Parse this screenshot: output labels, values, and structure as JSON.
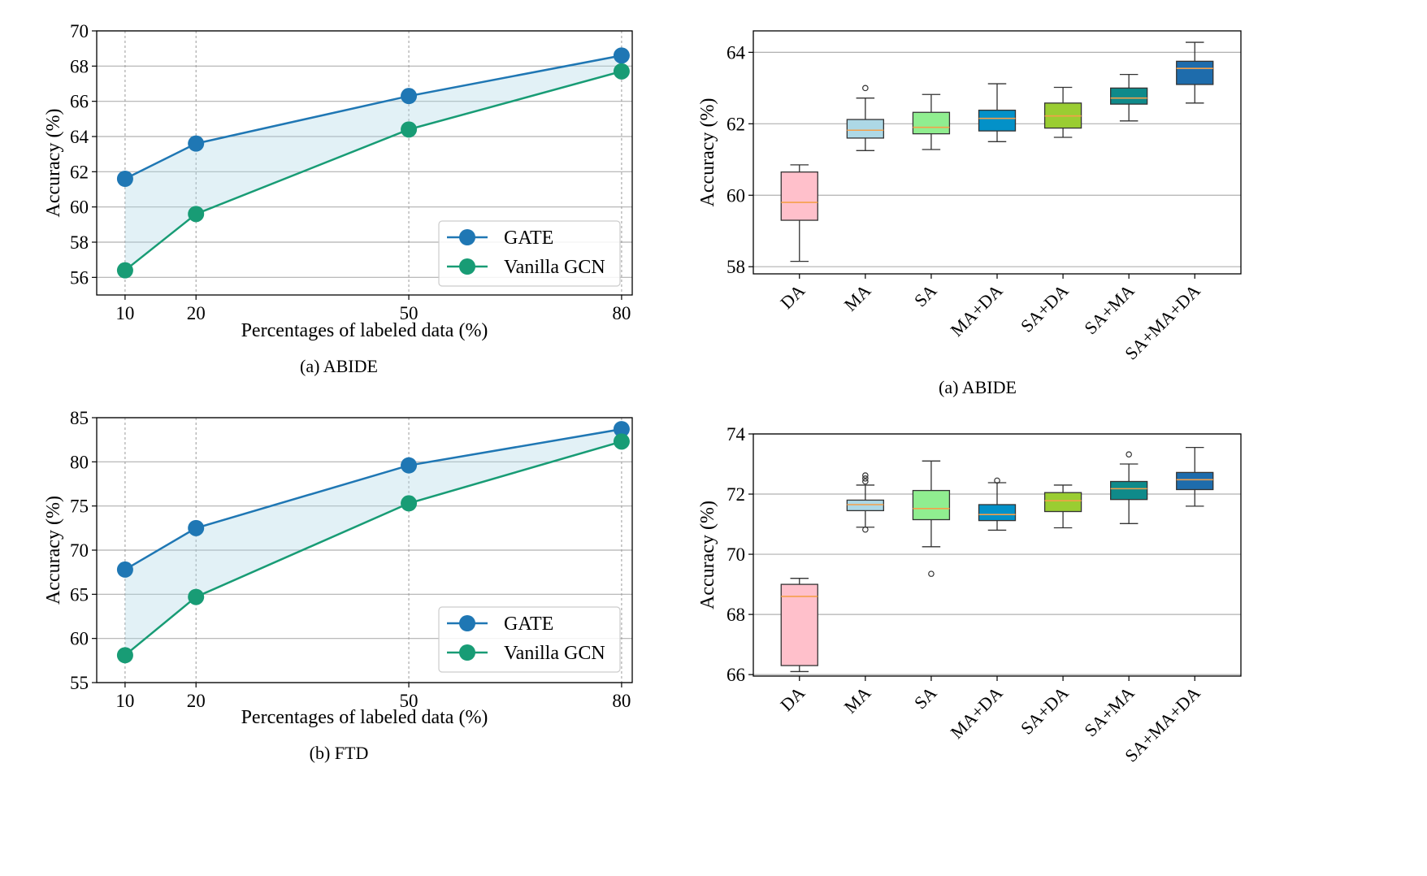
{
  "chart_data": [
    {
      "type": "line",
      "caption": "(a)  ABIDE",
      "xlabel": "Percentages of labeled data (%)",
      "ylabel": "Accuracy (%)",
      "x": [
        10,
        20,
        50,
        80
      ],
      "xticks": [
        "10",
        "20",
        "50",
        "80"
      ],
      "ylim": [
        55,
        70
      ],
      "yticks": [
        56,
        58,
        60,
        62,
        64,
        66,
        68,
        70
      ],
      "xlim": [
        6,
        81.5
      ],
      "grid": true,
      "fill_between": true,
      "legend_position": "lower-right",
      "series": [
        {
          "name": "GATE",
          "color": "#1f77b4",
          "values": [
            61.6,
            63.6,
            66.3,
            68.6
          ]
        },
        {
          "name": "Vanilla GCN",
          "color": "#189c75",
          "values": [
            56.4,
            59.6,
            64.4,
            67.7
          ]
        }
      ]
    },
    {
      "type": "line",
      "caption": "(b)  FTD",
      "xlabel": "Percentages of labeled data (%)",
      "ylabel": "Accuracy (%)",
      "x": [
        10,
        20,
        50,
        80
      ],
      "xticks": [
        "10",
        "20",
        "50",
        "80"
      ],
      "ylim": [
        55,
        85
      ],
      "yticks": [
        55,
        60,
        65,
        70,
        75,
        80,
        85
      ],
      "xlim": [
        6,
        81.5
      ],
      "grid": true,
      "fill_between": true,
      "legend_position": "lower-right",
      "series": [
        {
          "name": "GATE",
          "color": "#1f77b4",
          "values": [
            67.8,
            72.5,
            79.6,
            83.7
          ]
        },
        {
          "name": "Vanilla GCN",
          "color": "#189c75",
          "values": [
            58.1,
            64.7,
            75.3,
            82.3
          ]
        }
      ]
    },
    {
      "type": "box",
      "caption": "(a)  ABIDE",
      "ylabel": "Accuracy (%)",
      "ylim": [
        57.8,
        64.6
      ],
      "yticks": [
        58,
        60,
        62,
        64
      ],
      "grid": true,
      "categories": [
        "DA",
        "MA",
        "SA",
        "MA+DA",
        "SA+DA",
        "SA+MA",
        "SA+MA+DA"
      ],
      "boxes": [
        {
          "label": "DA",
          "color": "#ffc0cb",
          "whislo": 58.15,
          "q1": 59.3,
          "med": 59.8,
          "q3": 60.65,
          "whishi": 60.85,
          "fliers": []
        },
        {
          "label": "MA",
          "color": "#add8e6",
          "whislo": 61.25,
          "q1": 61.6,
          "med": 61.82,
          "q3": 62.12,
          "whishi": 62.72,
          "fliers": [
            63.0
          ]
        },
        {
          "label": "SA",
          "color": "#90ee90",
          "whislo": 61.28,
          "q1": 61.72,
          "med": 61.9,
          "q3": 62.32,
          "whishi": 62.82,
          "fliers": []
        },
        {
          "label": "MA+DA",
          "color": "#0391c8",
          "whislo": 61.5,
          "q1": 61.8,
          "med": 62.15,
          "q3": 62.38,
          "whishi": 63.12,
          "fliers": []
        },
        {
          "label": "SA+DA",
          "color": "#9acd32",
          "whislo": 61.62,
          "q1": 61.88,
          "med": 62.22,
          "q3": 62.58,
          "whishi": 63.02,
          "fliers": []
        },
        {
          "label": "SA+MA",
          "color": "#0f8a8a",
          "whislo": 62.08,
          "q1": 62.55,
          "med": 62.72,
          "q3": 63.0,
          "whishi": 63.38,
          "fliers": []
        },
        {
          "label": "SA+MA+DA",
          "color": "#1e6cac",
          "whislo": 62.58,
          "q1": 63.1,
          "med": 63.55,
          "q3": 63.75,
          "whishi": 64.28,
          "fliers": []
        }
      ]
    },
    {
      "type": "box",
      "caption": "",
      "ylabel": "Accuracy (%)",
      "ylim": [
        65.95,
        74.0
      ],
      "yticks": [
        66,
        68,
        70,
        72,
        74
      ],
      "grid": true,
      "categories": [
        "DA",
        "MA",
        "SA",
        "MA+DA",
        "SA+DA",
        "SA+MA",
        "SA+MA+DA"
      ],
      "boxes": [
        {
          "label": "DA",
          "color": "#ffc0cb",
          "whislo": 66.1,
          "q1": 66.3,
          "med": 68.6,
          "q3": 69.0,
          "whishi": 69.2,
          "fliers": []
        },
        {
          "label": "MA",
          "color": "#add8e6",
          "whislo": 70.9,
          "q1": 71.45,
          "med": 71.65,
          "q3": 71.8,
          "whishi": 72.3,
          "fliers": [
            70.82,
            72.42,
            72.52,
            72.62
          ]
        },
        {
          "label": "SA",
          "color": "#90ee90",
          "whislo": 70.25,
          "q1": 71.15,
          "med": 71.52,
          "q3": 72.12,
          "whishi": 73.1,
          "fliers": [
            69.35
          ]
        },
        {
          "label": "MA+DA",
          "color": "#0391c8",
          "whislo": 70.8,
          "q1": 71.12,
          "med": 71.32,
          "q3": 71.65,
          "whishi": 72.38,
          "fliers": [
            72.45
          ]
        },
        {
          "label": "SA+DA",
          "color": "#9acd32",
          "whislo": 70.88,
          "q1": 71.42,
          "med": 71.78,
          "q3": 72.05,
          "whishi": 72.3,
          "fliers": []
        },
        {
          "label": "SA+MA",
          "color": "#0f8a8a",
          "whislo": 71.02,
          "q1": 71.82,
          "med": 72.18,
          "q3": 72.42,
          "whishi": 73.0,
          "fliers": [
            73.32
          ]
        },
        {
          "label": "SA+MA+DA",
          "color": "#1e6cac",
          "whislo": 71.6,
          "q1": 72.15,
          "med": 72.48,
          "q3": 72.72,
          "whishi": 73.55,
          "fliers": []
        }
      ]
    }
  ]
}
